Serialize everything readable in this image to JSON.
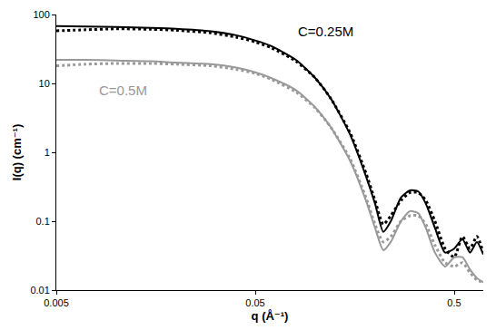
{
  "chart_data": {
    "type": "line",
    "log": true,
    "grid": false,
    "xlabel": "q (Å⁻¹)",
    "ylabel": "I(q) (cm⁻¹)",
    "xlim": [
      0.005,
      0.7
    ],
    "ylim": [
      0.01,
      100
    ],
    "xticks": [
      0.005,
      0.05,
      0.5
    ],
    "yticks": [
      0.01,
      0.1,
      1,
      10,
      100
    ],
    "x": [
      0.005,
      0.007,
      0.01,
      0.015,
      0.02,
      0.03,
      0.04,
      0.05,
      0.06,
      0.08,
      0.1,
      0.12,
      0.15,
      0.18,
      0.2,
      0.22,
      0.24,
      0.27,
      0.3,
      0.33,
      0.36,
      0.4,
      0.45,
      0.5,
      0.55,
      0.6,
      0.65,
      0.7
    ],
    "series": [
      {
        "color": "#000000",
        "line_style": "solid",
        "values": [
          68,
          67,
          66,
          64,
          62,
          57,
          50,
          42,
          35,
          22,
          12,
          6,
          1.8,
          0.45,
          0.18,
          0.07,
          0.1,
          0.22,
          0.28,
          0.27,
          0.18,
          0.08,
          0.035,
          0.04,
          0.055,
          0.035,
          0.05,
          0.033
        ]
      },
      {
        "color": "#000000",
        "line_style": "dotted",
        "values": [
          58,
          60,
          62,
          61,
          59,
          54,
          47,
          40,
          33,
          21,
          12,
          6,
          1.9,
          0.5,
          0.2,
          0.09,
          0.12,
          0.2,
          0.26,
          0.26,
          0.2,
          0.1,
          0.04,
          0.03,
          0.06,
          0.04,
          0.06,
          0.035
        ]
      },
      {
        "color": "#999999",
        "line_style": "solid",
        "values": [
          22,
          22,
          21.5,
          21,
          20,
          19,
          17,
          14.5,
          12,
          8,
          4.5,
          2.3,
          0.75,
          0.2,
          0.08,
          0.038,
          0.05,
          0.1,
          0.14,
          0.13,
          0.08,
          0.035,
          0.022,
          0.03,
          0.03,
          0.02,
          0.015,
          0.013
        ]
      },
      {
        "color": "#999999",
        "line_style": "dotted",
        "values": [
          18,
          19,
          19.5,
          19.5,
          19,
          18,
          16,
          14,
          11.5,
          7.5,
          4.4,
          2.3,
          0.8,
          0.22,
          0.09,
          0.05,
          0.06,
          0.1,
          0.12,
          0.12,
          0.09,
          0.045,
          0.025,
          0.022,
          0.025,
          0.018,
          0.014,
          0.013
        ]
      }
    ],
    "annotations": [
      {
        "text": "C=0.25M",
        "x": 0.08,
        "y": 57,
        "color": "#000000"
      },
      {
        "text": "C=0.5M",
        "x": 0.008,
        "y": 8,
        "color": "#999999"
      }
    ]
  }
}
